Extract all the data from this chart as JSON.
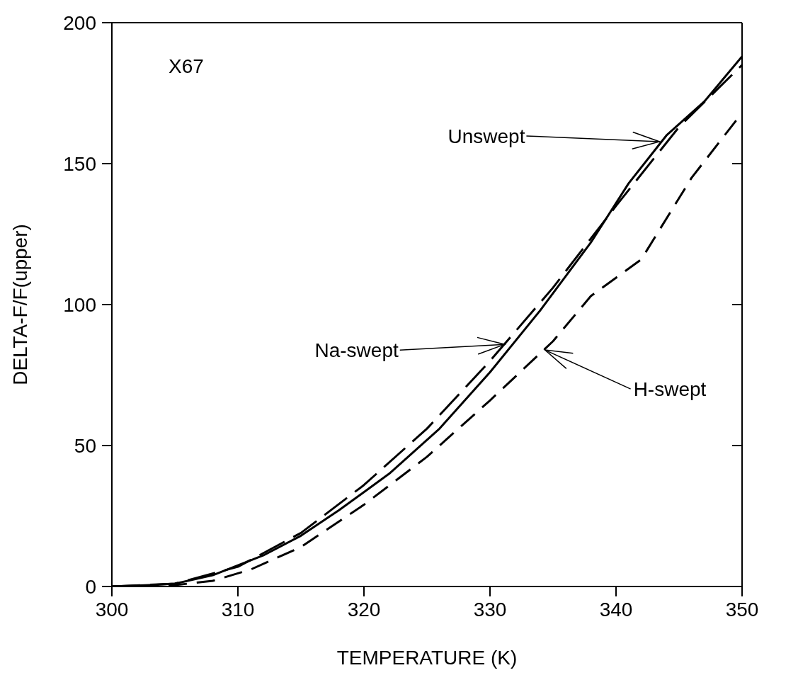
{
  "chart_data": {
    "type": "line",
    "xlabel": "TEMPERATURE (K)",
    "ylabel": "DELTA-F/F(upper)",
    "xlim": [
      300,
      350
    ],
    "ylim": [
      0,
      200
    ],
    "xticks": [
      300,
      310,
      320,
      330,
      340,
      350
    ],
    "yticks": [
      0,
      50,
      100,
      150,
      200
    ],
    "marker": "none",
    "annotations": [
      "X67",
      {
        "text": "Unswept",
        "x": 343.5,
        "y": 158
      },
      {
        "text": "Na-swept",
        "x": 331.2,
        "y": 86
      },
      {
        "text": "H-swept",
        "x": 334.4,
        "y": 84
      }
    ],
    "series": [
      {
        "color": "#000000",
        "line_style": "solid",
        "x": [
          300,
          303,
          305,
          308,
          312,
          315,
          318,
          322,
          326,
          330,
          334,
          338,
          341,
          344,
          347,
          350
        ],
        "values": [
          0,
          0.5,
          1,
          4,
          11,
          18,
          27,
          40,
          56,
          76,
          98,
          122,
          143,
          160,
          172,
          188
        ]
      },
      {
        "color": "#000000",
        "line_style": "dashed",
        "x": [
          300,
          305,
          310,
          315,
          320,
          325,
          330,
          335,
          340,
          345,
          350
        ],
        "values": [
          0,
          1,
          7,
          19,
          36,
          56,
          80,
          106,
          135,
          163,
          185
        ]
      },
      {
        "color": "#000000",
        "line_style": "dotted",
        "x": [
          300,
          305,
          308,
          311,
          315,
          320,
          325,
          330,
          335,
          338,
          342,
          346,
          350
        ],
        "values": [
          0,
          0.5,
          2,
          6,
          14,
          29,
          46,
          66,
          87,
          103,
          116,
          145,
          168
        ]
      }
    ]
  }
}
